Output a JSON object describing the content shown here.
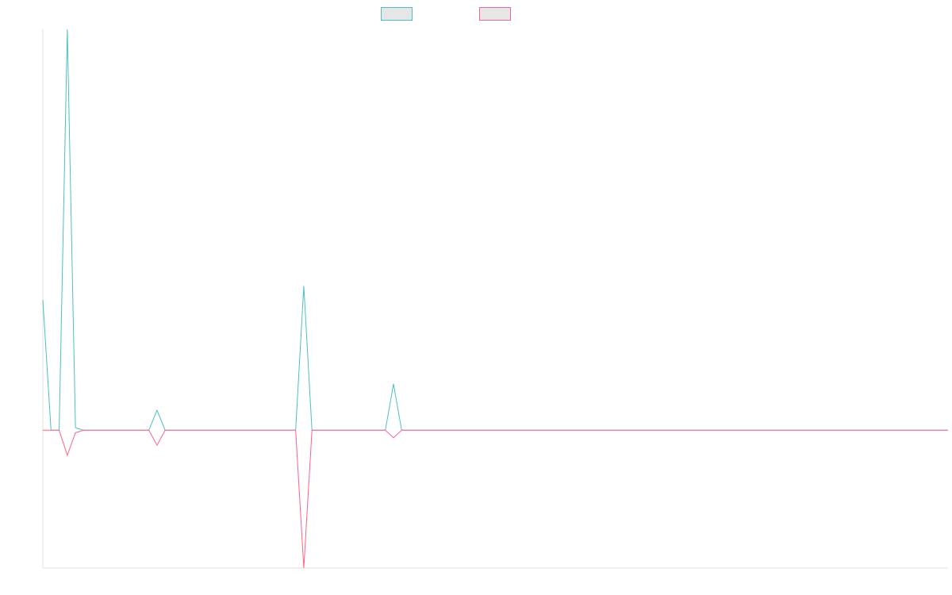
{
  "chart_data": {
    "type": "line",
    "title": "",
    "xlabel": "",
    "ylabel": "",
    "ylim": [
      -1.1,
      3.2
    ],
    "grid": false,
    "legend_position": "top-center",
    "x": [
      0,
      1,
      2,
      3,
      4,
      5,
      6,
      7,
      8,
      9,
      10,
      11,
      12,
      13,
      14,
      15,
      16,
      17,
      18,
      19,
      20,
      21,
      22,
      23,
      24,
      25,
      26,
      27,
      28,
      29,
      30,
      31,
      32,
      33,
      34,
      35,
      36,
      37,
      38,
      39,
      40,
      41,
      42,
      43,
      44,
      45,
      46,
      47,
      48,
      49,
      50,
      51,
      52,
      53,
      54,
      55,
      56,
      57,
      58,
      59,
      60,
      61,
      62,
      63,
      64,
      65,
      66,
      67,
      68,
      69,
      70,
      71,
      72,
      73,
      74,
      75,
      76,
      77,
      78,
      79,
      80,
      81,
      82,
      83,
      84,
      85,
      86,
      87,
      88,
      89,
      90,
      91,
      92,
      93,
      94,
      95,
      96,
      97,
      98,
      99,
      100,
      101,
      102,
      103,
      104,
      105,
      106,
      107,
      108,
      109,
      110,
      111
    ],
    "series": [
      {
        "name": "",
        "color": "#4bc0c0",
        "values": [
          1.04,
          0,
          0,
          3.2,
          0.02,
          0,
          0,
          0,
          0,
          0,
          0,
          0,
          0,
          0,
          0.16,
          0,
          0,
          0,
          0,
          0,
          0,
          0,
          0,
          0,
          0,
          0,
          0,
          0,
          0,
          0,
          0,
          0,
          1.15,
          0,
          0,
          0,
          0,
          0,
          0,
          0,
          0,
          0,
          0,
          0.37,
          0,
          0,
          0,
          0,
          0,
          0,
          0,
          0,
          0,
          0,
          0,
          0,
          0,
          0,
          0,
          0,
          0,
          0,
          0,
          0,
          0,
          0,
          0,
          0,
          0,
          0,
          0,
          0,
          0,
          0,
          0,
          0,
          0,
          0,
          0,
          0,
          0,
          0,
          0,
          0,
          0,
          0,
          0,
          0,
          0,
          0,
          0,
          0,
          0,
          0,
          0,
          0,
          0,
          0,
          0,
          0,
          0,
          0,
          0,
          0,
          0,
          0,
          0,
          0,
          0,
          0,
          0,
          0
        ]
      },
      {
        "name": "",
        "color": "#ff6384",
        "values": [
          0,
          0,
          0,
          -0.2,
          -0.02,
          0,
          0,
          0,
          0,
          0,
          0,
          0,
          0,
          0,
          -0.12,
          0,
          0,
          0,
          0,
          0,
          0,
          0,
          0,
          0,
          0,
          0,
          0,
          0,
          0,
          0,
          0,
          0,
          -1.1,
          0,
          0,
          0,
          0,
          0,
          0,
          0,
          0,
          0,
          0,
          -0.06,
          0,
          0,
          0,
          0,
          0,
          0,
          0,
          0,
          0,
          0,
          0,
          0,
          0,
          0,
          0,
          0,
          0,
          0,
          0,
          0,
          0,
          0,
          0,
          0,
          0,
          0,
          0,
          0,
          0,
          0,
          0,
          0,
          0,
          0,
          0,
          0,
          0,
          0,
          0,
          0,
          0,
          0,
          0,
          0,
          0,
          0,
          0,
          0,
          0,
          0,
          0,
          0,
          0,
          0,
          0,
          0,
          0,
          0,
          0,
          0,
          0,
          0,
          0,
          0,
          0,
          0,
          0,
          0
        ]
      }
    ]
  }
}
